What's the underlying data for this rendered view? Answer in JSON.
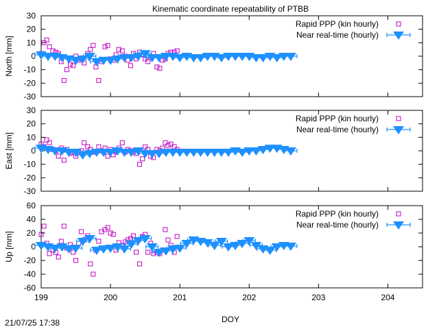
{
  "page": {
    "title": "Kinematic coordinate repeatability of PTBB",
    "timestamp": "21/07/25 17:38"
  },
  "chart_data": [
    {
      "type": "scatter",
      "title": "Kinematic coordinate repeatability of PTBB",
      "ylabel": "North [mm]",
      "xlim": [
        199,
        204.5
      ],
      "ylim": [
        -30,
        30
      ],
      "yticks": [
        "30",
        "20",
        "10",
        "0",
        "-10",
        "-20",
        "-30"
      ],
      "ytick_values": [
        30,
        20,
        10,
        0,
        -10,
        -20,
        -30
      ],
      "legend_position": "top-right",
      "series": [
        {
          "name": "Rapid PPP (kin hourly)",
          "marker": "open-square",
          "color": "#c000c0",
          "x": [
            199.0,
            199.04,
            199.08,
            199.12,
            199.17,
            199.21,
            199.25,
            199.29,
            199.33,
            199.37,
            199.42,
            199.46,
            199.5,
            199.54,
            199.58,
            199.62,
            199.67,
            199.71,
            199.75,
            199.79,
            199.83,
            199.87,
            199.92,
            199.96,
            200.0,
            200.04,
            200.08,
            200.12,
            200.17,
            200.21,
            200.25,
            200.29,
            200.33,
            200.37,
            200.42,
            200.46,
            200.5,
            200.54,
            200.58,
            200.62,
            200.67,
            200.71,
            200.75,
            200.79,
            200.83,
            200.87,
            200.92,
            200.96
          ],
          "y": [
            2,
            10,
            12,
            7,
            4,
            3,
            2,
            -4,
            -18,
            -10,
            -6,
            -7,
            0,
            -3,
            -2,
            -5,
            2,
            5,
            8,
            -8,
            -18,
            -4,
            7,
            8,
            -2,
            -3,
            1,
            5,
            4,
            0,
            -3,
            -7,
            2,
            -2,
            3,
            1,
            -2,
            -4,
            -1,
            2,
            -8,
            -9,
            -3,
            -2,
            2,
            3,
            3,
            4
          ]
        },
        {
          "name": "Near real-time (hourly)",
          "marker": "filled-triangle-down-errorbar",
          "color": "#1e90ff",
          "x": [
            199.0,
            199.1,
            199.2,
            199.3,
            199.4,
            199.5,
            199.6,
            199.7,
            199.8,
            199.9,
            200.0,
            200.1,
            200.2,
            200.3,
            200.4,
            200.5,
            200.6,
            200.7,
            200.8,
            200.9,
            201.0,
            201.1,
            201.2,
            201.3,
            201.4,
            201.5,
            201.6,
            201.7,
            201.8,
            201.9,
            202.0,
            202.1,
            202.2,
            202.3,
            202.4,
            202.5,
            202.6
          ],
          "y": [
            1,
            0,
            0,
            -1,
            -2,
            -3,
            -2,
            0,
            -4,
            -3,
            -3,
            -2,
            -1,
            -1,
            0,
            2,
            -1,
            -1,
            0,
            0,
            -1,
            0,
            -1,
            -1,
            0,
            0,
            -1,
            0,
            0,
            0,
            0,
            -1,
            -1,
            0,
            -1,
            0,
            0
          ]
        }
      ]
    },
    {
      "type": "scatter",
      "ylabel": "East [mm]",
      "xlim": [
        199,
        204.5
      ],
      "ylim": [
        -30,
        30
      ],
      "yticks": [
        "30",
        "20",
        "10",
        "0",
        "-10",
        "-20",
        "-30"
      ],
      "ytick_values": [
        30,
        20,
        10,
        0,
        -10,
        -20,
        -30
      ],
      "legend_position": "top-right",
      "series": [
        {
          "name": "Rapid PPP (kin hourly)",
          "marker": "open-square",
          "color": "#c000c0",
          "x": [
            199.0,
            199.04,
            199.08,
            199.12,
            199.17,
            199.21,
            199.25,
            199.29,
            199.33,
            199.37,
            199.42,
            199.46,
            199.5,
            199.54,
            199.58,
            199.62,
            199.67,
            199.71,
            199.75,
            199.79,
            199.83,
            199.87,
            199.92,
            199.96,
            200.0,
            200.04,
            200.08,
            200.12,
            200.17,
            200.21,
            200.25,
            200.29,
            200.33,
            200.37,
            200.42,
            200.46,
            200.5,
            200.54,
            200.58,
            200.62,
            200.67,
            200.71,
            200.75,
            200.79,
            200.83,
            200.87,
            200.92,
            200.96
          ],
          "y": [
            5,
            3,
            8,
            6,
            1,
            0,
            -4,
            2,
            -7,
            1,
            -2,
            -1,
            -4,
            -1,
            0,
            6,
            3,
            1,
            -1,
            -1,
            3,
            0,
            2,
            -4,
            1,
            -3,
            -1,
            2,
            6,
            -1,
            1,
            0,
            -1,
            -2,
            -10,
            -6,
            3,
            1,
            -4,
            -5,
            1,
            0,
            2,
            6,
            4,
            5,
            3,
            1
          ]
        },
        {
          "name": "Near real-time (hourly)",
          "marker": "filled-triangle-down-errorbar",
          "color": "#1e90ff",
          "x": [
            199.0,
            199.1,
            199.2,
            199.3,
            199.4,
            199.5,
            199.6,
            199.7,
            199.8,
            199.9,
            200.0,
            200.1,
            200.2,
            200.3,
            200.4,
            200.5,
            200.6,
            200.7,
            200.8,
            200.9,
            201.0,
            201.1,
            201.2,
            201.3,
            201.4,
            201.5,
            201.6,
            201.7,
            201.8,
            201.9,
            202.0,
            202.1,
            202.2,
            202.3,
            202.4,
            202.5,
            202.6
          ],
          "y": [
            2,
            1,
            0,
            0,
            -1,
            -1,
            -3,
            -2,
            -1,
            -1,
            -1,
            0,
            -1,
            -1,
            0,
            -2,
            -2,
            -2,
            -1,
            -1,
            -1,
            -1,
            -1,
            -1,
            -1,
            -1,
            -1,
            -1,
            0,
            -1,
            0,
            0,
            1,
            2,
            2,
            1,
            0
          ]
        }
      ]
    },
    {
      "type": "scatter",
      "ylabel": "Up [mm]",
      "xlabel": "DOY",
      "xlim": [
        199,
        204.5
      ],
      "ylim": [
        -60,
        60
      ],
      "yticks": [
        "60",
        "40",
        "20",
        "0",
        "-20",
        "-40",
        "-60"
      ],
      "ytick_values": [
        60,
        40,
        20,
        0,
        -20,
        -40,
        -60
      ],
      "xticks": [
        "199",
        "200",
        "201",
        "202",
        "203",
        "204"
      ],
      "xtick_values": [
        199,
        200,
        201,
        202,
        203,
        204
      ],
      "legend_position": "top-right",
      "series": [
        {
          "name": "Rapid PPP (kin hourly)",
          "marker": "open-square",
          "color": "#c000c0",
          "x": [
            199.0,
            199.04,
            199.08,
            199.12,
            199.17,
            199.21,
            199.25,
            199.29,
            199.33,
            199.37,
            199.42,
            199.46,
            199.5,
            199.54,
            199.58,
            199.62,
            199.67,
            199.71,
            199.75,
            199.79,
            199.83,
            199.87,
            199.92,
            199.96,
            200.0,
            200.04,
            200.08,
            200.12,
            200.17,
            200.21,
            200.25,
            200.29,
            200.33,
            200.37,
            200.42,
            200.46,
            200.5,
            200.54,
            200.58,
            200.62,
            200.67,
            200.71,
            200.75,
            200.79,
            200.83,
            200.87,
            200.92,
            200.96
          ],
          "y": [
            18,
            30,
            5,
            -10,
            -5,
            -8,
            -15,
            8,
            30,
            -2,
            3,
            -8,
            -20,
            5,
            22,
            10,
            16,
            -25,
            -40,
            -5,
            8,
            22,
            25,
            28,
            20,
            18,
            -5,
            6,
            2,
            7,
            10,
            12,
            16,
            -8,
            -25,
            15,
            18,
            -8,
            5,
            -10,
            -8,
            -10,
            -5,
            25,
            10,
            2,
            -8,
            15
          ]
        },
        {
          "name": "Near real-time (hourly)",
          "marker": "filled-triangle-down-errorbar",
          "color": "#1e90ff",
          "x": [
            199.0,
            199.1,
            199.2,
            199.3,
            199.4,
            199.5,
            199.6,
            199.7,
            199.8,
            199.9,
            200.0,
            200.1,
            200.2,
            200.3,
            200.4,
            200.5,
            200.6,
            200.7,
            200.8,
            200.9,
            201.0,
            201.1,
            201.2,
            201.3,
            201.4,
            201.5,
            201.6,
            201.7,
            201.8,
            201.9,
            202.0,
            202.1,
            202.2,
            202.3,
            202.4,
            202.5,
            202.6
          ],
          "y": [
            2,
            0,
            -2,
            0,
            -3,
            -2,
            8,
            12,
            -5,
            -3,
            -2,
            0,
            -3,
            4,
            9,
            12,
            0,
            -8,
            -6,
            -3,
            -2,
            5,
            10,
            8,
            6,
            2,
            8,
            0,
            2,
            5,
            9,
            2,
            -3,
            -5,
            0,
            2,
            1
          ]
        }
      ]
    }
  ]
}
